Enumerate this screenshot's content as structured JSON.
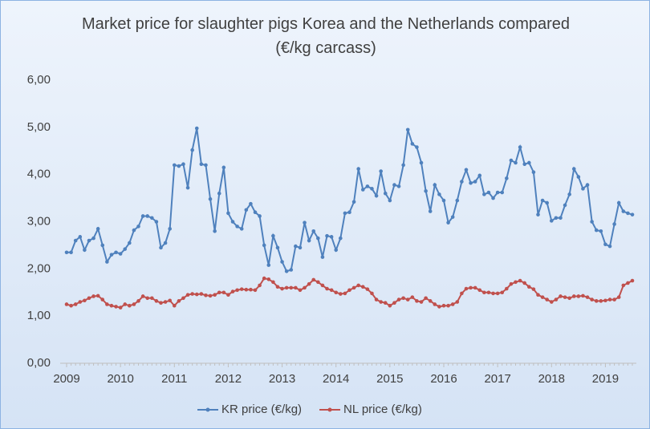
{
  "chart_data": {
    "type": "line",
    "title": "Market price for slaughter pigs Korea and the Netherlands compared (€/kg carcass)",
    "categories": [
      "2009",
      null,
      null,
      null,
      null,
      null,
      null,
      null,
      null,
      null,
      null,
      null,
      "2010",
      null,
      null,
      null,
      null,
      null,
      null,
      null,
      null,
      null,
      null,
      null,
      "2011",
      null,
      null,
      null,
      null,
      null,
      null,
      null,
      null,
      null,
      null,
      null,
      "2012",
      null,
      null,
      null,
      null,
      null,
      null,
      null,
      null,
      null,
      null,
      null,
      "2013",
      null,
      null,
      null,
      null,
      null,
      null,
      null,
      null,
      null,
      null,
      null,
      "2014",
      null,
      null,
      null,
      null,
      null,
      null,
      null,
      null,
      null,
      null,
      null,
      "2015",
      null,
      null,
      null,
      null,
      null,
      null,
      null,
      null,
      null,
      null,
      null,
      "2016",
      null,
      null,
      null,
      null,
      null,
      null,
      null,
      null,
      null,
      null,
      null,
      "2017",
      null,
      null,
      null,
      null,
      null,
      null,
      null,
      null,
      null,
      null,
      null,
      "2018",
      null,
      null,
      null,
      null,
      null,
      null,
      null,
      null,
      null,
      null,
      null,
      "2019",
      null,
      null,
      null,
      null,
      null,
      null
    ],
    "series": [
      {
        "name": "KR price (€/kg)",
        "color": "#4f81bd",
        "values": [
          2.35,
          2.35,
          2.6,
          2.68,
          2.4,
          2.6,
          2.65,
          2.85,
          2.5,
          2.15,
          2.3,
          2.35,
          2.32,
          2.42,
          2.55,
          2.82,
          2.9,
          3.12,
          3.12,
          3.08,
          3.0,
          2.45,
          2.55,
          2.85,
          4.2,
          4.18,
          4.22,
          3.72,
          4.52,
          4.98,
          4.22,
          4.2,
          3.48,
          2.8,
          3.6,
          4.15,
          3.18,
          3.0,
          2.9,
          2.85,
          3.25,
          3.38,
          3.2,
          3.12,
          2.5,
          2.08,
          2.7,
          2.45,
          2.15,
          1.95,
          1.98,
          2.48,
          2.45,
          2.98,
          2.6,
          2.8,
          2.65,
          2.25,
          2.7,
          2.68,
          2.4,
          2.65,
          3.18,
          3.2,
          3.42,
          4.12,
          3.68,
          3.75,
          3.7,
          3.55,
          4.07,
          3.6,
          3.45,
          3.78,
          3.75,
          4.2,
          4.95,
          4.65,
          4.58,
          4.25,
          3.65,
          3.22,
          3.78,
          3.58,
          3.45,
          2.98,
          3.1,
          3.45,
          3.85,
          4.1,
          3.82,
          3.85,
          3.98,
          3.58,
          3.62,
          3.5,
          3.62,
          3.62,
          3.92,
          4.3,
          4.25,
          4.58,
          4.22,
          4.25,
          4.05,
          3.15,
          3.45,
          3.4,
          3.02,
          3.08,
          3.08,
          3.35,
          3.58,
          4.12,
          3.95,
          3.7,
          3.78,
          3.0,
          2.82,
          2.8,
          2.52,
          2.48,
          2.95,
          3.4,
          3.22,
          3.18,
          3.15
        ]
      },
      {
        "name": "NL price (€/kg)",
        "color": "#c0504d",
        "values": [
          1.25,
          1.22,
          1.25,
          1.3,
          1.33,
          1.38,
          1.42,
          1.43,
          1.35,
          1.25,
          1.22,
          1.2,
          1.18,
          1.25,
          1.22,
          1.25,
          1.32,
          1.42,
          1.38,
          1.38,
          1.32,
          1.28,
          1.3,
          1.33,
          1.22,
          1.32,
          1.38,
          1.45,
          1.47,
          1.46,
          1.47,
          1.44,
          1.43,
          1.45,
          1.5,
          1.5,
          1.45,
          1.52,
          1.55,
          1.57,
          1.56,
          1.56,
          1.55,
          1.65,
          1.8,
          1.78,
          1.72,
          1.62,
          1.58,
          1.6,
          1.6,
          1.6,
          1.55,
          1.6,
          1.68,
          1.77,
          1.72,
          1.65,
          1.58,
          1.55,
          1.5,
          1.47,
          1.48,
          1.55,
          1.6,
          1.65,
          1.62,
          1.57,
          1.48,
          1.35,
          1.3,
          1.28,
          1.22,
          1.28,
          1.35,
          1.38,
          1.35,
          1.4,
          1.32,
          1.3,
          1.38,
          1.32,
          1.25,
          1.2,
          1.22,
          1.22,
          1.25,
          1.3,
          1.48,
          1.58,
          1.6,
          1.6,
          1.55,
          1.5,
          1.5,
          1.48,
          1.48,
          1.5,
          1.58,
          1.68,
          1.72,
          1.75,
          1.7,
          1.62,
          1.57,
          1.45,
          1.4,
          1.35,
          1.3,
          1.35,
          1.42,
          1.4,
          1.38,
          1.42,
          1.42,
          1.43,
          1.4,
          1.35,
          1.32,
          1.32,
          1.33,
          1.35,
          1.35,
          1.4,
          1.65,
          1.7,
          1.75
        ]
      }
    ],
    "ylim": [
      0,
      6
    ],
    "yticks": [
      {
        "value": 0,
        "label": "0,00"
      },
      {
        "value": 1,
        "label": "1,00"
      },
      {
        "value": 2,
        "label": "2,00"
      },
      {
        "value": 3,
        "label": "3,00"
      },
      {
        "value": 4,
        "label": "4,00"
      },
      {
        "value": 5,
        "label": "5,00"
      },
      {
        "value": 6,
        "label": "6,00"
      }
    ],
    "grid": false,
    "legend": "bottom"
  }
}
